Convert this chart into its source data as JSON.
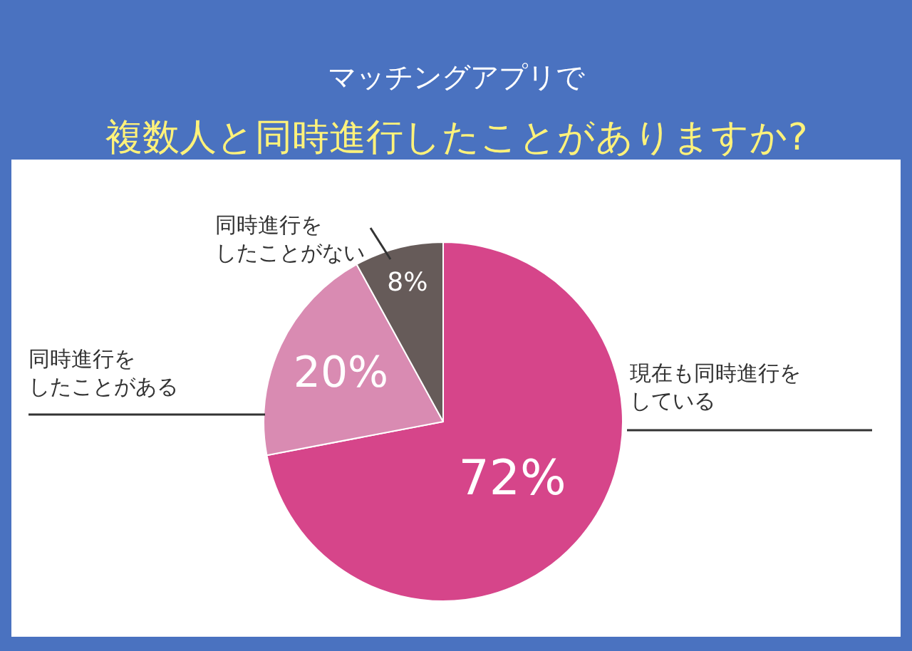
{
  "chart_data": {
    "type": "pie",
    "title": "マッチングアプリで",
    "subtitle": "複数人と同時進行したことがありますか?",
    "categories": [
      "現在も同時進行をしている",
      "同時進行をしたことがある",
      "同時進行をしたことがない"
    ],
    "values": [
      72,
      20,
      8
    ],
    "value_labels": [
      "72%",
      "20%",
      "8%"
    ],
    "colors": [
      "#d6458a",
      "#d98bb2",
      "#665b59"
    ]
  }
}
